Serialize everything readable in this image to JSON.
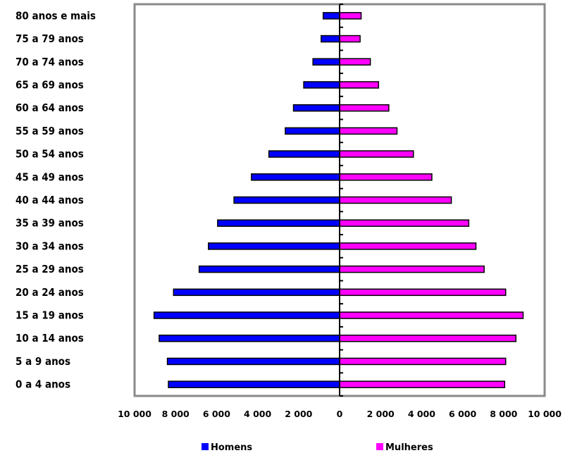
{
  "chart_data": {
    "type": "bar",
    "orientation": "horizontal",
    "layout": "population-pyramid",
    "categories": [
      "0 a 4 anos",
      "5 a 9  anos",
      "10 a 14 anos",
      "15 a 19 anos",
      "20 a 24  anos",
      "25 a 29 anos",
      "30 a 34 anos",
      "35 a 39  anos",
      "40 a 44 anos",
      "45 a 49 anos",
      "50 a 54 anos",
      "55 a 59 anos",
      "60 a 64 anos",
      "65 a 69 anos",
      "70 a 74 anos",
      "75 a 79 anos",
      "80 anos e mais"
    ],
    "series": [
      {
        "name": "Homens",
        "color": "#0000ff",
        "values": [
          8350,
          8400,
          8800,
          9050,
          8100,
          6850,
          6400,
          5950,
          5150,
          4300,
          3450,
          2650,
          2250,
          1750,
          1300,
          900,
          800
        ]
      },
      {
        "name": "Mulheres",
        "color": "#ff00ff",
        "values": [
          8050,
          8100,
          8600,
          8950,
          8100,
          7050,
          6650,
          6300,
          5450,
          4500,
          3600,
          2800,
          2400,
          1900,
          1500,
          1000,
          1050
        ]
      }
    ],
    "xlim": [
      -10000,
      10000
    ],
    "x_ticks": [
      -10000,
      -8000,
      -6000,
      -4000,
      -2000,
      0,
      2000,
      4000,
      6000,
      8000,
      10000
    ],
    "x_tick_labels": [
      "10 000",
      "8 000",
      "6 000",
      "4 000",
      "2 000",
      "0",
      "2 000",
      "4 000",
      "6 000",
      "8 000",
      "10 000"
    ],
    "title": "",
    "xlabel": "",
    "ylabel": "",
    "grid": false,
    "legend_position": "bottom"
  }
}
